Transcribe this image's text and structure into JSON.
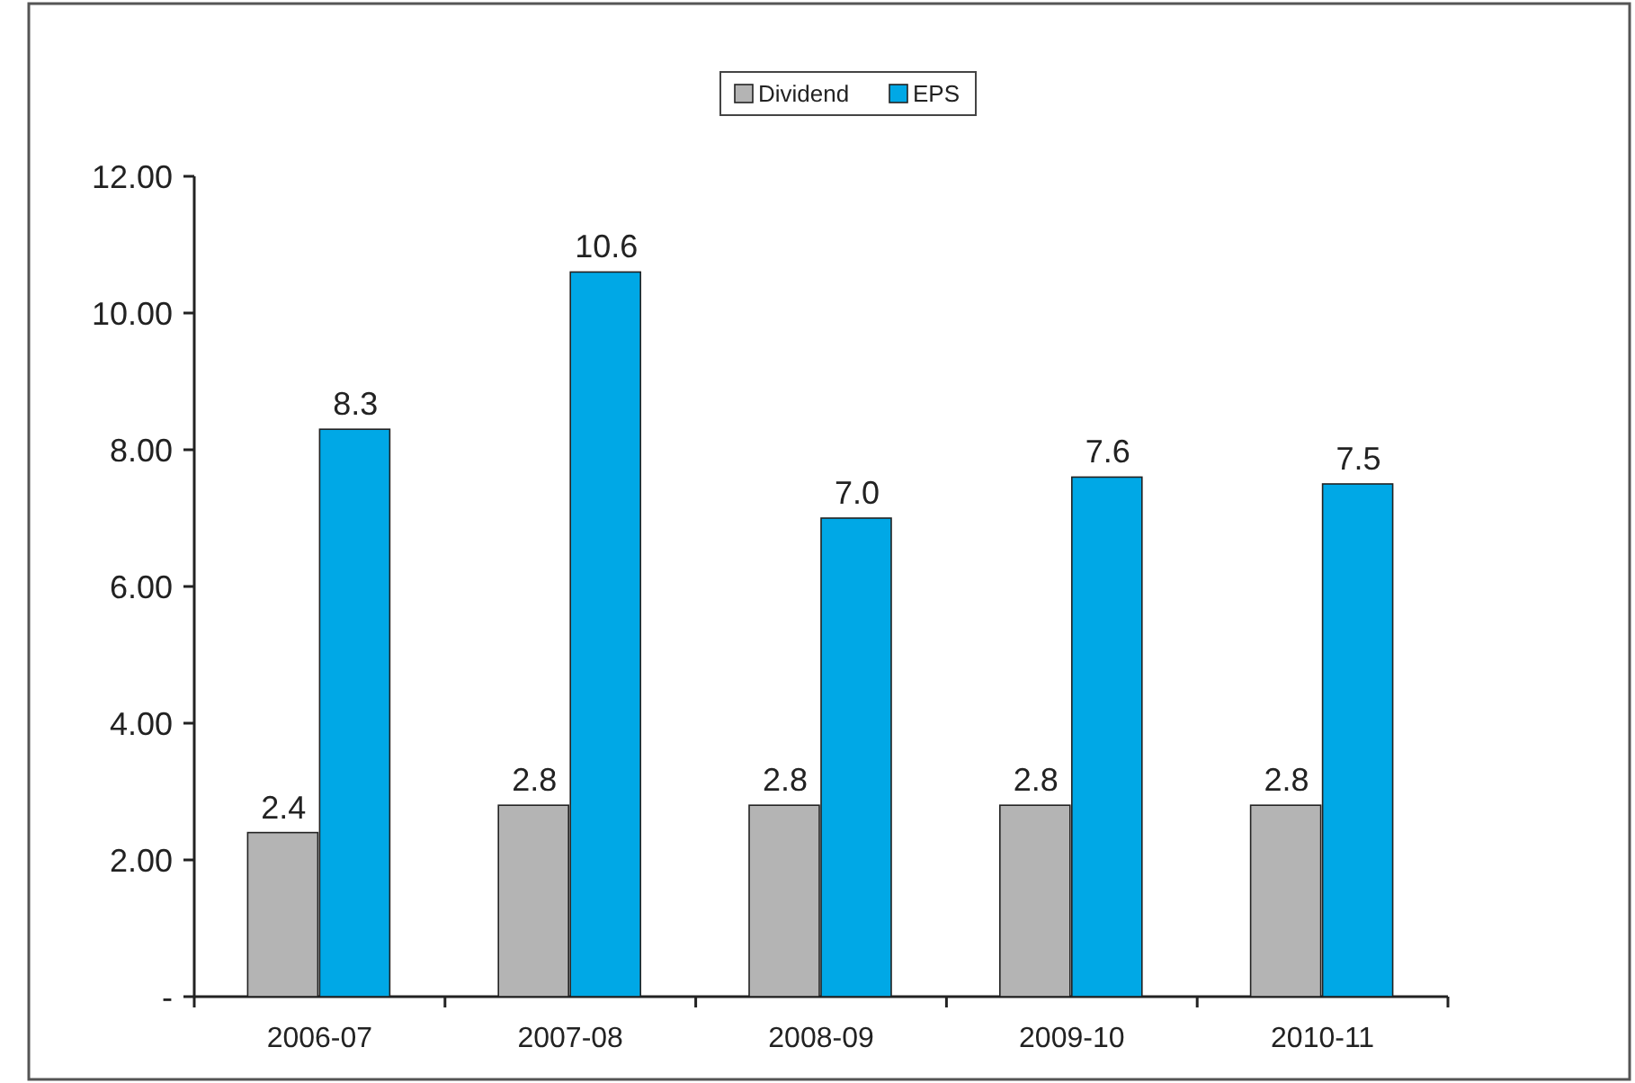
{
  "chart_data": {
    "type": "bar",
    "categories": [
      "2006-07",
      "2007-08",
      "2008-09",
      "2009-10",
      "2010-11"
    ],
    "series": [
      {
        "name": "Dividend",
        "color": "#b4b4b4",
        "values": [
          2.4,
          2.8,
          2.8,
          2.8,
          2.8
        ],
        "value_labels": [
          "2.4",
          "2.8",
          "2.8",
          "2.8",
          "2.8"
        ]
      },
      {
        "name": "EPS",
        "color": "#00a8e6",
        "values": [
          8.3,
          10.6,
          7.0,
          7.6,
          7.5
        ],
        "value_labels": [
          "8.3",
          "10.6",
          "7.0",
          "7.6",
          "7.5"
        ]
      }
    ],
    "ylim": [
      0,
      12
    ],
    "yticks": [
      {
        "value": 0,
        "label": "-"
      },
      {
        "value": 2,
        "label": "2.00"
      },
      {
        "value": 4,
        "label": "4.00"
      },
      {
        "value": 6,
        "label": "6.00"
      },
      {
        "value": 8,
        "label": "8.00"
      },
      {
        "value": 10,
        "label": "10.00"
      },
      {
        "value": 12,
        "label": "12.00"
      }
    ],
    "grid": false,
    "legend": "top"
  }
}
